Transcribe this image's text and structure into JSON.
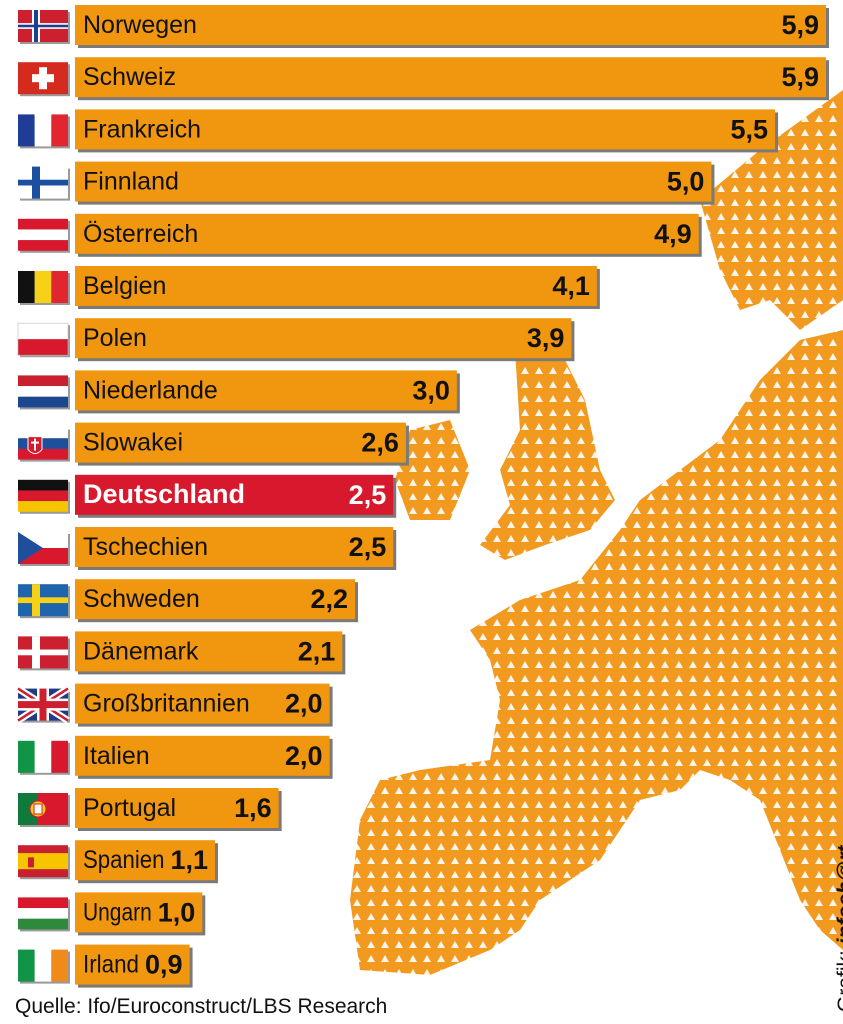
{
  "chart_data": {
    "type": "bar",
    "orientation": "horizontal",
    "categories": [
      "Norwegen",
      "Schweiz",
      "Frankreich",
      "Finnland",
      "Österreich",
      "Belgien",
      "Polen",
      "Niederlande",
      "Slowakei",
      "Deutschland",
      "Tschechien",
      "Schweden",
      "Dänemark",
      "Großbritannien",
      "Italien",
      "Portugal",
      "Spanien",
      "Ungarn",
      "Irland"
    ],
    "values": [
      5.9,
      5.9,
      5.5,
      5.0,
      4.9,
      4.1,
      3.9,
      3.0,
      2.6,
      2.5,
      2.5,
      2.2,
      2.1,
      2.0,
      2.0,
      1.6,
      1.1,
      1.0,
      0.9
    ],
    "value_labels": [
      "5,9",
      "5,9",
      "5,5",
      "5,0",
      "4,9",
      "4,1",
      "3,9",
      "3,0",
      "2,6",
      "2,5",
      "2,5",
      "2,2",
      "2,1",
      "2,0",
      "2,0",
      "1,6",
      "1,1",
      "1,0",
      "0,9"
    ],
    "highlight": "Deutschland",
    "flags": [
      "flag-norway",
      "flag-switzerland",
      "flag-france",
      "flag-finland",
      "flag-austria",
      "flag-belgium",
      "flag-poland",
      "flag-netherlands",
      "flag-slovakia",
      "flag-germany",
      "flag-czechia",
      "flag-sweden",
      "flag-denmark",
      "flag-uk",
      "flag-italy",
      "flag-portugal",
      "flag-spain",
      "flag-hungary",
      "flag-ireland"
    ],
    "xlim": [
      0,
      5.9
    ],
    "grid": false,
    "title": "",
    "xlabel": "",
    "ylabel": ""
  },
  "colors": {
    "bar": "#f0960f",
    "highlight": "#d8182c",
    "map": "#f29a1f",
    "sea": "#ffffff"
  },
  "footer": {
    "source": "Quelle: Ifo/Euroconstruct/LBS Research",
    "credit_prefix": "Grafik: ",
    "credit_brand": "infoch@rt."
  }
}
